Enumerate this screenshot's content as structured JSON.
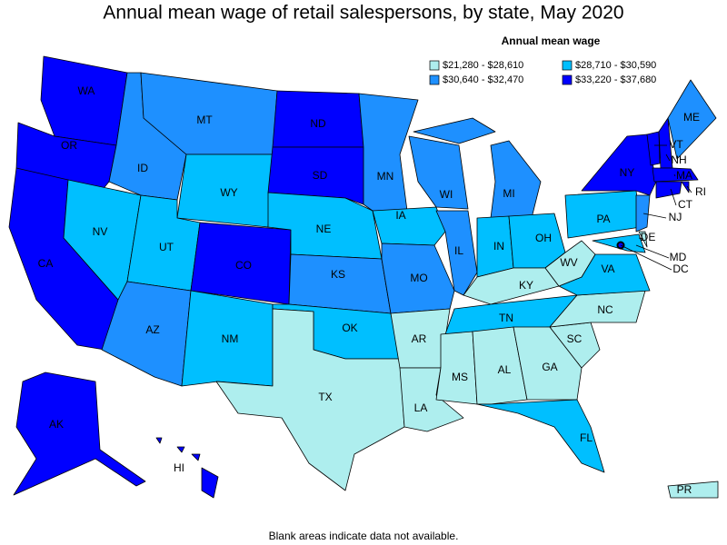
{
  "title": "Annual mean wage of retail salespersons, by state, May 2020",
  "legend": {
    "title": "Annual mean wage",
    "items": [
      {
        "label": "$21,280 - $28,610",
        "color": "#aeeeee"
      },
      {
        "label": "$28,710 - $30,590",
        "color": "#00bfff"
      },
      {
        "label": "$30,640 - $32,470",
        "color": "#1e90ff"
      },
      {
        "label": "$33,220 - $37,680",
        "color": "#0000ff"
      }
    ]
  },
  "states": [
    {
      "name": "WA",
      "color": "#0000ff"
    },
    {
      "name": "OR",
      "color": "#0000ff"
    },
    {
      "name": "CA",
      "color": "#0000ff"
    },
    {
      "name": "NV",
      "color": "#00bfff"
    },
    {
      "name": "ID",
      "color": "#1e90ff"
    },
    {
      "name": "MT",
      "color": "#1e90ff"
    },
    {
      "name": "WY",
      "color": "#00bfff"
    },
    {
      "name": "UT",
      "color": "#00bfff"
    },
    {
      "name": "CO",
      "color": "#0000ff"
    },
    {
      "name": "AZ",
      "color": "#1e90ff"
    },
    {
      "name": "NM",
      "color": "#00bfff"
    },
    {
      "name": "ND",
      "color": "#0000ff"
    },
    {
      "name": "SD",
      "color": "#0000ff"
    },
    {
      "name": "NE",
      "color": "#00bfff"
    },
    {
      "name": "KS",
      "color": "#1e90ff"
    },
    {
      "name": "OK",
      "color": "#00bfff"
    },
    {
      "name": "TX",
      "color": "#aeeeee"
    },
    {
      "name": "MN",
      "color": "#1e90ff"
    },
    {
      "name": "IA",
      "color": "#00bfff"
    },
    {
      "name": "MO",
      "color": "#1e90ff"
    },
    {
      "name": "AR",
      "color": "#aeeeee"
    },
    {
      "name": "LA",
      "color": "#aeeeee"
    },
    {
      "name": "WI",
      "color": "#1e90ff"
    },
    {
      "name": "IL",
      "color": "#1e90ff"
    },
    {
      "name": "MI",
      "color": "#1e90ff"
    },
    {
      "name": "IN",
      "color": "#00bfff"
    },
    {
      "name": "OH",
      "color": "#00bfff"
    },
    {
      "name": "KY",
      "color": "#aeeeee"
    },
    {
      "name": "TN",
      "color": "#00bfff"
    },
    {
      "name": "MS",
      "color": "#aeeeee"
    },
    {
      "name": "AL",
      "color": "#aeeeee"
    },
    {
      "name": "GA",
      "color": "#aeeeee"
    },
    {
      "name": "FL",
      "color": "#00bfff"
    },
    {
      "name": "SC",
      "color": "#aeeeee"
    },
    {
      "name": "NC",
      "color": "#aeeeee"
    },
    {
      "name": "VA",
      "color": "#00bfff"
    },
    {
      "name": "WV",
      "color": "#aeeeee"
    },
    {
      "name": "PA",
      "color": "#00bfff"
    },
    {
      "name": "NY",
      "color": "#0000ff"
    },
    {
      "name": "VT",
      "color": "#0000ff"
    },
    {
      "name": "NH",
      "color": "#0000ff"
    },
    {
      "name": "ME",
      "color": "#1e90ff"
    },
    {
      "name": "MA",
      "color": "#0000ff"
    },
    {
      "name": "RI",
      "color": "#0000ff"
    },
    {
      "name": "CT",
      "color": "#0000ff"
    },
    {
      "name": "NJ",
      "color": "#1e90ff"
    },
    {
      "name": "DE",
      "color": "#aeeeee"
    },
    {
      "name": "MD",
      "color": "#00bfff"
    },
    {
      "name": "DC",
      "color": "#0000ff"
    },
    {
      "name": "AK",
      "color": "#0000ff"
    },
    {
      "name": "HI",
      "color": "#0000ff"
    },
    {
      "name": "PR",
      "color": "#aeeeee"
    }
  ],
  "note": "Blank areas indicate data not available."
}
